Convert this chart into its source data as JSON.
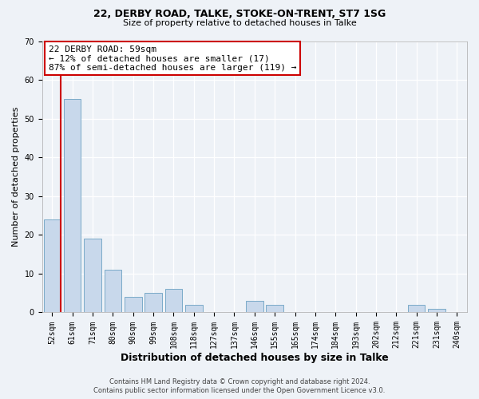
{
  "title1": "22, DERBY ROAD, TALKE, STOKE-ON-TRENT, ST7 1SG",
  "title2": "Size of property relative to detached houses in Talke",
  "xlabel": "Distribution of detached houses by size in Talke",
  "ylabel": "Number of detached properties",
  "bin_labels": [
    "52sqm",
    "61sqm",
    "71sqm",
    "80sqm",
    "90sqm",
    "99sqm",
    "108sqm",
    "118sqm",
    "127sqm",
    "137sqm",
    "146sqm",
    "155sqm",
    "165sqm",
    "174sqm",
    "184sqm",
    "193sqm",
    "202sqm",
    "212sqm",
    "221sqm",
    "231sqm",
    "240sqm"
  ],
  "bar_values": [
    24,
    55,
    19,
    11,
    4,
    5,
    6,
    2,
    0,
    0,
    3,
    2,
    0,
    0,
    0,
    0,
    0,
    0,
    2,
    1,
    0
  ],
  "bar_color": "#c8d8eb",
  "bar_edge_color": "#7aaac8",
  "ylim": [
    0,
    70
  ],
  "yticks": [
    0,
    10,
    20,
    30,
    40,
    50,
    60,
    70
  ],
  "property_line_x": 0.43,
  "annotation_title": "22 DERBY ROAD: 59sqm",
  "annotation_line1": "← 12% of detached houses are smaller (17)",
  "annotation_line2": "87% of semi-detached houses are larger (119) →",
  "annotation_box_color": "#ffffff",
  "annotation_box_edge": "#cc0000",
  "red_line_color": "#cc0000",
  "footer1": "Contains HM Land Registry data © Crown copyright and database right 2024.",
  "footer2": "Contains public sector information licensed under the Open Government Licence v3.0.",
  "background_color": "#eef2f7",
  "grid_color": "#ffffff",
  "title1_fontsize": 9,
  "title2_fontsize": 8,
  "annotation_fontsize": 8,
  "xlabel_fontsize": 9,
  "ylabel_fontsize": 8,
  "tick_fontsize": 7,
  "footer_fontsize": 6
}
